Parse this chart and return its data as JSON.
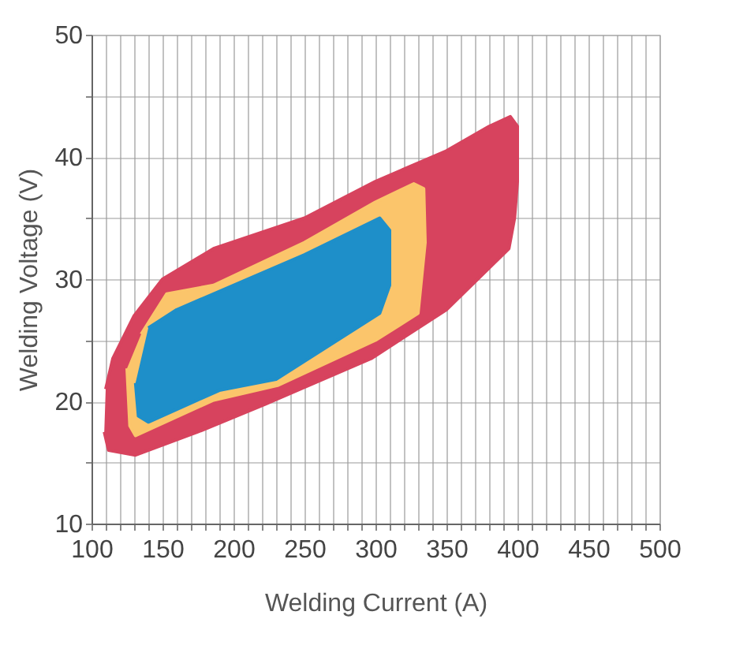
{
  "chart_data": {
    "type": "area",
    "xlabel": "Welding Current (A)",
    "ylabel": "Welding Voltage (V)",
    "xlim": [
      100,
      500
    ],
    "ylim": [
      10,
      50
    ],
    "xticks": [
      100,
      {
        "value": 110,
        "label": null
      },
      {
        "value": 120,
        "label": null
      },
      {
        "value": 130,
        "label": null
      },
      {
        "value": 140,
        "label": null
      },
      150,
      {
        "value": 160,
        "label": null
      },
      {
        "value": 170,
        "label": null
      },
      {
        "value": 180,
        "label": null
      },
      {
        "value": 190,
        "label": null
      },
      200,
      {
        "value": 210,
        "label": null
      },
      {
        "value": 220,
        "label": null
      },
      {
        "value": 230,
        "label": null
      },
      {
        "value": 240,
        "label": null
      },
      250,
      {
        "value": 260,
        "label": null
      },
      {
        "value": 270,
        "label": null
      },
      {
        "value": 280,
        "label": null
      },
      {
        "value": 290,
        "label": null
      },
      300,
      {
        "value": 310,
        "label": null
      },
      {
        "value": 320,
        "label": null
      },
      {
        "value": 330,
        "label": null
      },
      {
        "value": 340,
        "label": null
      },
      350,
      {
        "value": 360,
        "label": null
      },
      {
        "value": 370,
        "label": null
      },
      {
        "value": 380,
        "label": null
      },
      {
        "value": 390,
        "label": null
      },
      400,
      {
        "value": 410,
        "label": null
      },
      {
        "value": 420,
        "label": null
      },
      {
        "value": 430,
        "label": null
      },
      {
        "value": 440,
        "label": null
      },
      450,
      {
        "value": 460,
        "label": null
      },
      {
        "value": 470,
        "label": null
      },
      {
        "value": 480,
        "label": null
      },
      {
        "value": 490,
        "label": null
      },
      500
    ],
    "yticks": [
      10,
      {
        "value": 15,
        "label": null
      },
      20,
      {
        "value": 25,
        "label": null
      },
      30,
      {
        "value": 35,
        "label": null
      },
      40,
      {
        "value": 45,
        "label": null
      },
      50
    ],
    "grid": true,
    "series": [
      {
        "color": "#d7435e",
        "x": [
          109,
          112,
          131,
          175,
          223,
          297,
          350,
          394,
          398,
          400,
          400,
          395,
          380,
          350,
          300,
          250,
          186,
          150,
          130,
          115,
          110
        ],
        "values": [
          17.5,
          16,
          15.6,
          17.5,
          19.8,
          23.5,
          27.5,
          32.5,
          35,
          38,
          42.5,
          43.3,
          42.5,
          40.5,
          38,
          35,
          32.5,
          30,
          27,
          23.5,
          21
        ]
      },
      {
        "color": "#fbc56b",
        "x": [
          125,
          127,
          131,
          186,
          231,
          300,
          330,
          335,
          334,
          327,
          300,
          250,
          186,
          153,
          135
        ],
        "values": [
          22.7,
          18,
          17.2,
          20.1,
          21.3,
          25,
          27.2,
          33,
          37.4,
          37.8,
          36.3,
          33,
          29.5,
          28.8,
          25.5
        ]
      },
      {
        "color": "#1e8fc9",
        "x": [
          131,
          133,
          140,
          190,
          230,
          303,
          310,
          310,
          303,
          250,
          200,
          160,
          140
        ],
        "values": [
          21.5,
          18.8,
          18.3,
          20.9,
          21.8,
          27.2,
          29.5,
          34,
          35,
          32,
          29.5,
          27.5,
          26
        ]
      }
    ]
  }
}
